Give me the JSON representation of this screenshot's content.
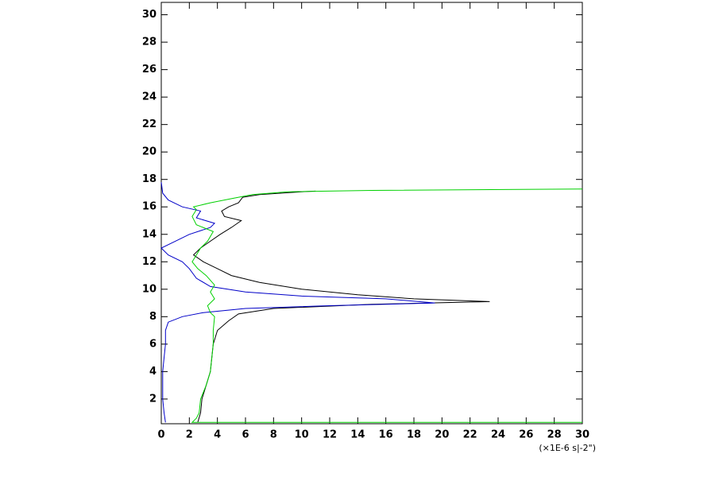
{
  "chart_data": {
    "type": "line",
    "xlabel": "(×1E-6 s|-2\")",
    "xlim": [
      0,
      30
    ],
    "xticks": [
      0,
      2,
      4,
      6,
      8,
      10,
      12,
      14,
      16,
      18,
      20,
      22,
      24,
      26,
      28,
      30
    ],
    "ylim": [
      0.2,
      30.9
    ],
    "yticks": [
      2,
      4,
      6,
      8,
      10,
      12,
      14,
      16,
      18,
      20,
      22,
      24,
      26,
      28,
      30
    ],
    "series": [
      {
        "color": "#000000",
        "y": [
          0.3,
          1,
          2,
          3,
          4,
          5,
          6,
          7,
          7.7,
          8.2,
          8.6,
          8.9,
          9.1,
          9.3,
          9.6,
          10,
          10.5,
          11,
          11.5,
          12,
          12.5,
          13,
          13.5,
          14,
          14.5,
          15,
          15.3,
          15.7,
          16,
          16.3,
          16.7,
          16.9,
          17.1,
          17.15
        ],
        "values": [
          2.6,
          2.8,
          2.9,
          3.2,
          3.5,
          3.6,
          3.7,
          4,
          4.8,
          5.5,
          8,
          15,
          23.4,
          18,
          14,
          10,
          7,
          5,
          4,
          3,
          2.3,
          2.8,
          3.5,
          4.2,
          5,
          5.7,
          4.5,
          4.3,
          4.8,
          5.5,
          5.8,
          7,
          10,
          11
        ]
      },
      {
        "color": "#0000c8",
        "y": [
          0.3,
          1,
          2,
          3,
          4,
          5,
          6,
          7,
          7.6,
          8,
          8.3,
          8.6,
          8.8,
          9,
          9.3,
          9.5,
          9.8,
          10.2,
          10.8,
          11.5,
          12,
          12.5,
          13,
          13.5,
          14,
          14.5,
          14.8,
          15.2,
          15.7,
          16,
          16.5,
          17,
          17.8
        ],
        "values": [
          0.3,
          0.2,
          0.1,
          0.1,
          0.1,
          0.2,
          0.3,
          0.3,
          0.5,
          1.5,
          3,
          6,
          12,
          19.5,
          16,
          10,
          6,
          3.5,
          2.5,
          2,
          1.5,
          0.5,
          0,
          1,
          2,
          3.5,
          3.8,
          2.5,
          2.8,
          1.5,
          0.5,
          0.1,
          0
        ]
      },
      {
        "color": "#00d000",
        "y": [
          0.3,
          0.3,
          0.6,
          1,
          2,
          3,
          4,
          5,
          6,
          7,
          8,
          8.3,
          8.8,
          9.3,
          9.8,
          10.3,
          11,
          11.5,
          12,
          12.5,
          13,
          13.5,
          14.2,
          14.7,
          15.3,
          15.8,
          16,
          16.3,
          16.6,
          16.9,
          17.1,
          17.2,
          17.3
        ],
        "values": [
          30,
          2.2,
          2.5,
          2.7,
          2.8,
          3.2,
          3.5,
          3.6,
          3.7,
          3.7,
          3.8,
          3.5,
          3.3,
          3.8,
          3.5,
          3.8,
          3.2,
          2.6,
          2.2,
          2.5,
          2.8,
          3.3,
          3.7,
          2.5,
          2.2,
          2.5,
          2.3,
          3.5,
          5,
          6.5,
          9,
          15,
          30
        ]
      }
    ]
  }
}
